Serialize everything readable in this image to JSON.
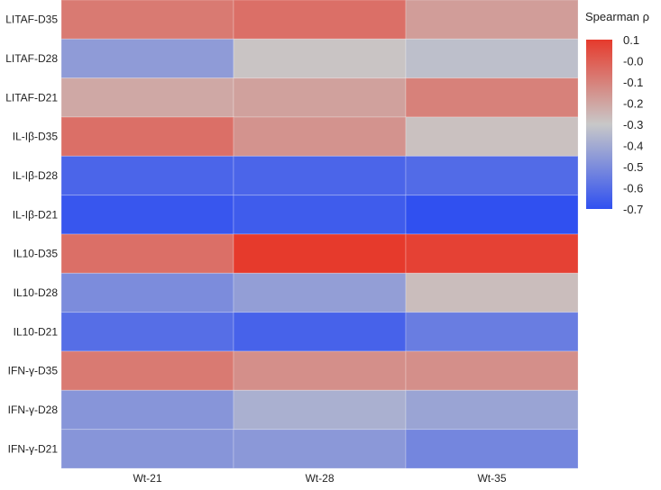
{
  "chart_data": {
    "type": "heatmap",
    "title": "",
    "xlabel": "",
    "ylabel": "",
    "rows": [
      "LITAF-D35",
      "LITAF-D28",
      "LITAF-D21",
      "IL-Iβ-D35",
      "IL-Iβ-D28",
      "IL-Iβ-D21",
      "IL10-D35",
      "IL10-D28",
      "IL10-D21",
      "IFN-γ-D35",
      "IFN-γ-D28",
      "IFN-γ-D21"
    ],
    "columns": [
      "Wt-21",
      "Wt-28",
      "Wt-35"
    ],
    "values": [
      [
        -0.08,
        -0.05,
        -0.18
      ],
      [
        -0.45,
        -0.29,
        -0.33
      ],
      [
        -0.21,
        -0.19,
        -0.1
      ],
      [
        -0.05,
        -0.15,
        -0.28
      ],
      [
        -0.63,
        -0.63,
        -0.61
      ],
      [
        -0.68,
        -0.66,
        -0.7
      ],
      [
        -0.05,
        0.1,
        0.08
      ],
      [
        -0.5,
        -0.44,
        -0.27
      ],
      [
        -0.6,
        -0.64,
        -0.55
      ],
      [
        -0.08,
        -0.14,
        -0.14
      ],
      [
        -0.47,
        -0.38,
        -0.42
      ],
      [
        -0.47,
        -0.46,
        -0.52
      ]
    ],
    "colorbar": {
      "title": "Spearman ρ",
      "min": -0.7,
      "max": 0.1,
      "ticks": [
        "0.1",
        "-0.0",
        "-0.1",
        "-0.2",
        "-0.3",
        "-0.4",
        "-0.5",
        "-0.6",
        "-0.7"
      ],
      "colors": {
        "low": "#3050f0",
        "mid": "#c8c8c8",
        "high": "#e63a2c"
      }
    },
    "grid": true,
    "legend_position": "top-right"
  }
}
